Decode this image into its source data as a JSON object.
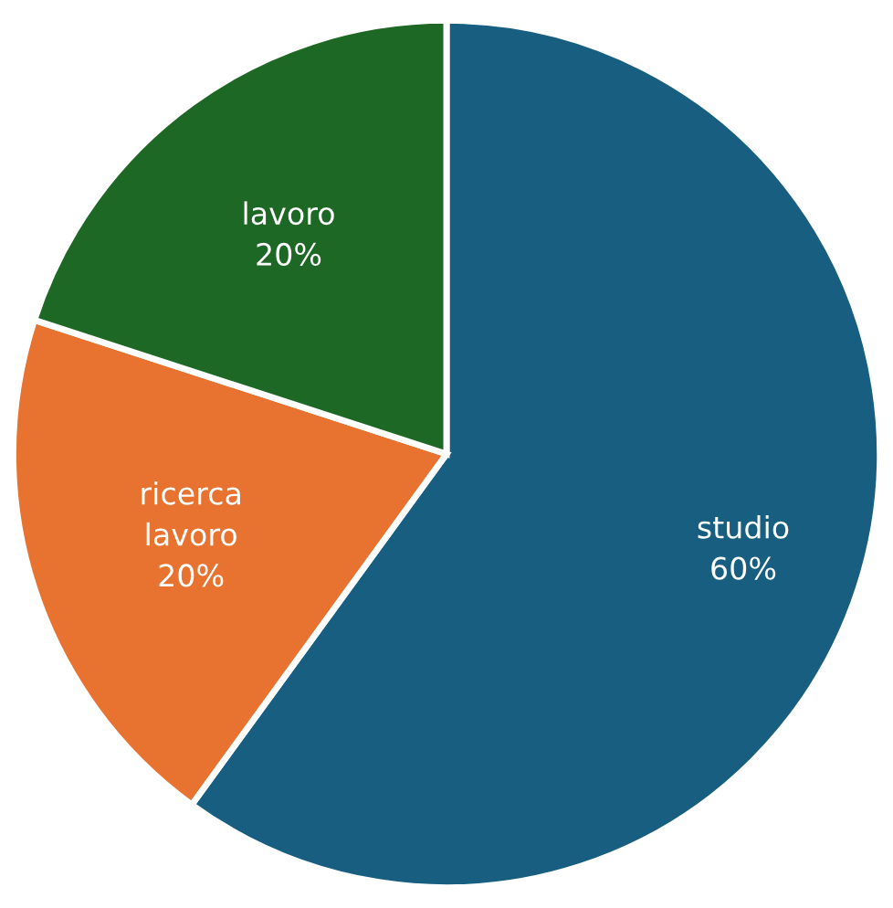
{
  "chart_data": {
    "type": "pie",
    "categories": [
      "studio",
      "ricerca lavoro",
      "lavoro"
    ],
    "values": [
      60,
      20,
      20
    ],
    "colors": [
      "#175e80",
      "#e8722f",
      "#1d6824"
    ],
    "value_labels": [
      "60%",
      "20%",
      "20%"
    ],
    "legend": false
  }
}
